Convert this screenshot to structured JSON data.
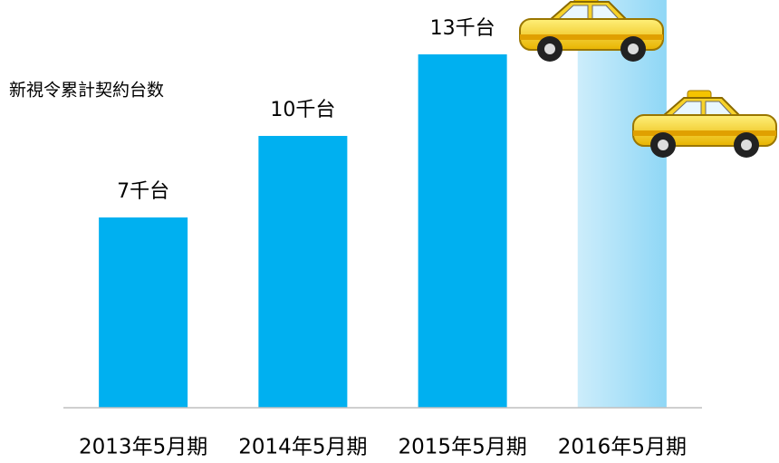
{
  "chart_data": {
    "type": "bar",
    "title": "新視令累計契約台数",
    "categories": [
      "2013年5月期",
      "2014年5月期",
      "2015年5月期",
      "2016年5月期"
    ],
    "values": [
      7,
      10,
      13,
      15
    ],
    "value_labels": [
      "7千台",
      "10千台",
      "13千台",
      null
    ],
    "colors": [
      "#00b0f0",
      "#00b0f0",
      "#00b0f0",
      "#8fd7f6"
    ],
    "ylim": [
      0,
      15
    ]
  }
}
